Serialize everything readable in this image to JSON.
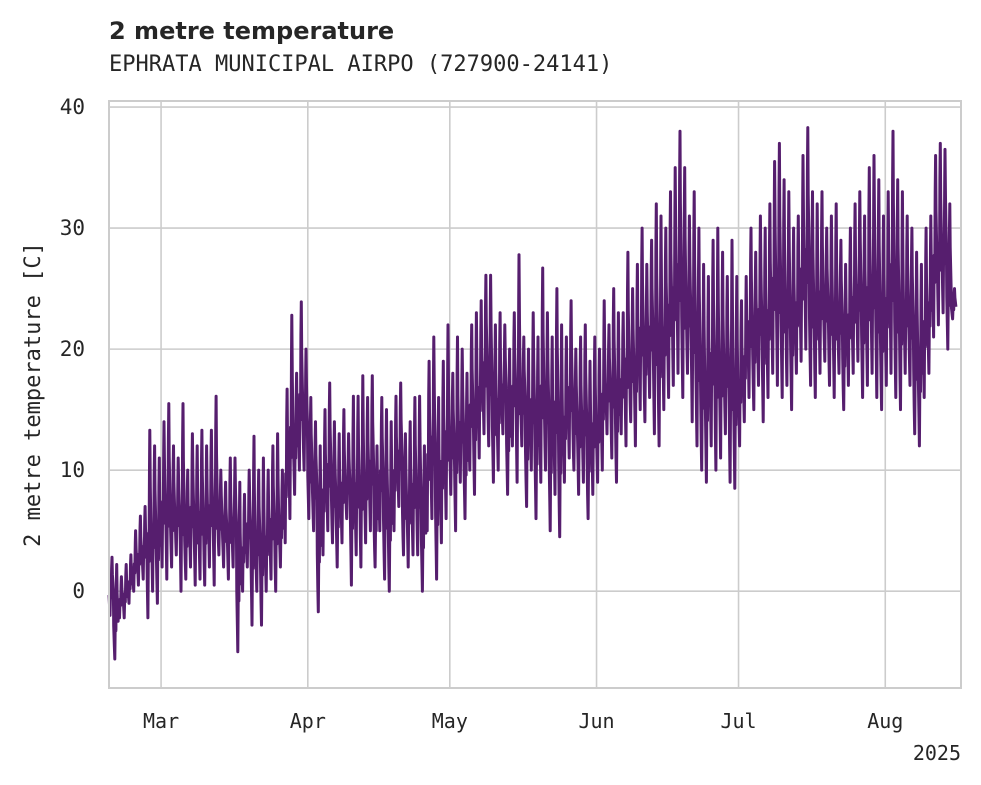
{
  "title": "2 metre temperature",
  "subtitle": "EPHRATA MUNICIPAL AIRPO (727900-24141)",
  "chart_data": {
    "type": "line",
    "ylabel": "2 metre temperature [C]",
    "xlabel": "",
    "x_ticks": [
      {
        "date": "2025-03-01",
        "label": "Mar"
      },
      {
        "date": "2025-04-01",
        "label": "Apr"
      },
      {
        "date": "2025-05-01",
        "label": "May"
      },
      {
        "date": "2025-06-01",
        "label": "Jun"
      },
      {
        "date": "2025-07-01",
        "label": "Jul"
      },
      {
        "date": "2025-08-01",
        "label": "Aug"
      }
    ],
    "year_label": "2025",
    "xlim": [
      "2025-02-18",
      "2025-08-17"
    ],
    "y_ticks": [
      0,
      10,
      20,
      30,
      40
    ],
    "ylim": [
      -8,
      40.5
    ],
    "grid": true,
    "series": [
      {
        "color": "#561e6e",
        "daily_min_max": [
          [
            "2025-02-18",
            -2.0,
            2.8
          ],
          [
            "2025-02-19",
            -5.6,
            2.2
          ],
          [
            "2025-02-20",
            -2.2,
            1.2
          ],
          [
            "2025-02-21",
            -2.2,
            2.2
          ],
          [
            "2025-02-22",
            -1.0,
            3.0
          ],
          [
            "2025-02-23",
            0.0,
            5.0
          ],
          [
            "2025-02-24",
            0.5,
            6.2
          ],
          [
            "2025-02-25",
            1.0,
            7.0
          ],
          [
            "2025-02-26",
            -2.2,
            13.3
          ],
          [
            "2025-02-27",
            0.0,
            12.0
          ],
          [
            "2025-02-28",
            -1.0,
            11.0
          ],
          [
            "2025-03-01",
            2.0,
            14.0
          ],
          [
            "2025-03-02",
            1.0,
            15.5
          ],
          [
            "2025-03-03",
            2.0,
            12.0
          ],
          [
            "2025-03-04",
            3.0,
            11.0
          ],
          [
            "2025-03-05",
            0.0,
            15.5
          ],
          [
            "2025-03-06",
            1.0,
            10.0
          ],
          [
            "2025-03-07",
            2.0,
            13.0
          ],
          [
            "2025-03-08",
            0.5,
            12.0
          ],
          [
            "2025-03-09",
            1.0,
            13.3
          ],
          [
            "2025-03-10",
            0.5,
            12.0
          ],
          [
            "2025-03-11",
            2.0,
            13.3
          ],
          [
            "2025-03-12",
            0.5,
            16.1
          ],
          [
            "2025-03-13",
            3.0,
            10.0
          ],
          [
            "2025-03-14",
            2.0,
            9.0
          ],
          [
            "2025-03-15",
            1.0,
            11.0
          ],
          [
            "2025-03-16",
            2.0,
            11.0
          ],
          [
            "2025-03-17",
            -5.0,
            9.0
          ],
          [
            "2025-03-18",
            0.0,
            8.0
          ],
          [
            "2025-03-19",
            2.0,
            10.0
          ],
          [
            "2025-03-20",
            -2.8,
            12.8
          ],
          [
            "2025-03-21",
            0.0,
            10.0
          ],
          [
            "2025-03-22",
            -2.8,
            11.0
          ],
          [
            "2025-03-23",
            0.0,
            10.0
          ],
          [
            "2025-03-24",
            1.0,
            12.0
          ],
          [
            "2025-03-25",
            0.0,
            13.0
          ],
          [
            "2025-03-26",
            2.0,
            10.0
          ],
          [
            "2025-03-27",
            4.0,
            16.7
          ],
          [
            "2025-03-28",
            6.0,
            22.8
          ],
          [
            "2025-03-29",
            8.0,
            18.0
          ],
          [
            "2025-03-30",
            10.0,
            23.9
          ],
          [
            "2025-03-31",
            10.0,
            20.0
          ],
          [
            "2025-04-01",
            6.0,
            16.0
          ],
          [
            "2025-04-02",
            5.0,
            14.0
          ],
          [
            "2025-04-03",
            -1.7,
            12.0
          ],
          [
            "2025-04-04",
            3.0,
            15.0
          ],
          [
            "2025-04-05",
            5.0,
            17.2
          ],
          [
            "2025-04-06",
            4.0,
            14.0
          ],
          [
            "2025-04-07",
            2.0,
            13.0
          ],
          [
            "2025-04-08",
            4.0,
            15.0
          ],
          [
            "2025-04-09",
            6.0,
            13.0
          ],
          [
            "2025-04-10",
            0.5,
            16.1
          ],
          [
            "2025-04-11",
            3.0,
            16.1
          ],
          [
            "2025-04-12",
            2.0,
            17.8
          ],
          [
            "2025-04-13",
            4.0,
            16.0
          ],
          [
            "2025-04-14",
            5.0,
            17.8
          ],
          [
            "2025-04-15",
            2.0,
            12.0
          ],
          [
            "2025-04-16",
            5.0,
            16.0
          ],
          [
            "2025-04-17",
            1.0,
            15.0
          ],
          [
            "2025-04-18",
            0.0,
            14.0
          ],
          [
            "2025-04-19",
            5.0,
            16.1
          ],
          [
            "2025-04-20",
            7.0,
            17.2
          ],
          [
            "2025-04-21",
            3.0,
            13.0
          ],
          [
            "2025-04-22",
            2.0,
            14.0
          ],
          [
            "2025-04-23",
            3.0,
            16.0
          ],
          [
            "2025-04-24",
            3.0,
            16.1
          ],
          [
            "2025-04-25",
            0.0,
            12.0
          ],
          [
            "2025-04-26",
            5.0,
            19.0
          ],
          [
            "2025-04-27",
            6.0,
            21.0
          ],
          [
            "2025-04-28",
            1.0,
            16.0
          ],
          [
            "2025-04-29",
            4.0,
            19.0
          ],
          [
            "2025-04-30",
            6.0,
            22.0
          ],
          [
            "2025-05-01",
            8.0,
            18.0
          ],
          [
            "2025-05-02",
            5.0,
            21.0
          ],
          [
            "2025-05-03",
            9.0,
            20.0
          ],
          [
            "2025-05-04",
            6.0,
            18.0
          ],
          [
            "2025-05-05",
            10.0,
            22.0
          ],
          [
            "2025-05-06",
            8.0,
            23.0
          ],
          [
            "2025-05-07",
            11.0,
            24.0
          ],
          [
            "2025-05-08",
            13.0,
            26.1
          ],
          [
            "2025-05-09",
            12.0,
            26.1
          ],
          [
            "2025-05-10",
            9.0,
            22.0
          ],
          [
            "2025-05-11",
            10.0,
            23.0
          ],
          [
            "2025-05-12",
            13.0,
            22.0
          ],
          [
            "2025-05-13",
            8.0,
            20.0
          ],
          [
            "2025-05-14",
            12.0,
            23.0
          ],
          [
            "2025-05-15",
            9.0,
            27.8
          ],
          [
            "2025-05-16",
            12.0,
            21.0
          ],
          [
            "2025-05-17",
            7.0,
            20.0
          ],
          [
            "2025-05-18",
            10.0,
            23.0
          ],
          [
            "2025-05-19",
            6.0,
            21.0
          ],
          [
            "2025-05-20",
            9.0,
            26.7
          ],
          [
            "2025-05-21",
            10.0,
            23.0
          ],
          [
            "2025-05-22",
            5.0,
            21.0
          ],
          [
            "2025-05-23",
            8.0,
            25.0
          ],
          [
            "2025-05-24",
            4.5,
            22.0
          ],
          [
            "2025-05-25",
            9.0,
            21.0
          ],
          [
            "2025-05-26",
            11.0,
            24.0
          ],
          [
            "2025-05-27",
            10.0,
            20.0
          ],
          [
            "2025-05-28",
            8.0,
            21.0
          ],
          [
            "2025-05-29",
            9.0,
            22.0
          ],
          [
            "2025-05-30",
            6.0,
            19.0
          ],
          [
            "2025-05-31",
            8.0,
            21.0
          ],
          [
            "2025-06-01",
            9.0,
            20.0
          ],
          [
            "2025-06-02",
            10.0,
            24.0
          ],
          [
            "2025-06-03",
            13.0,
            22.0
          ],
          [
            "2025-06-04",
            11.0,
            25.0
          ],
          [
            "2025-06-05",
            9.0,
            23.0
          ],
          [
            "2025-06-06",
            13.0,
            23.0
          ],
          [
            "2025-06-07",
            12.0,
            28.0
          ],
          [
            "2025-06-08",
            14.0,
            25.0
          ],
          [
            "2025-06-09",
            12.0,
            27.0
          ],
          [
            "2025-06-10",
            15.0,
            30.0
          ],
          [
            "2025-06-11",
            14.0,
            27.0
          ],
          [
            "2025-06-12",
            16.0,
            29.0
          ],
          [
            "2025-06-13",
            13.0,
            32.0
          ],
          [
            "2025-06-14",
            12.0,
            31.0
          ],
          [
            "2025-06-15",
            15.0,
            30.0
          ],
          [
            "2025-06-16",
            16.0,
            33.0
          ],
          [
            "2025-06-17",
            17.0,
            35.0
          ],
          [
            "2025-06-18",
            18.0,
            38.0
          ],
          [
            "2025-06-19",
            16.0,
            35.0
          ],
          [
            "2025-06-20",
            18.0,
            31.0
          ],
          [
            "2025-06-21",
            14.0,
            33.0
          ],
          [
            "2025-06-22",
            12.0,
            30.0
          ],
          [
            "2025-06-23",
            10.0,
            27.0
          ],
          [
            "2025-06-24",
            9.0,
            26.0
          ],
          [
            "2025-06-25",
            12.0,
            29.0
          ],
          [
            "2025-06-26",
            10.0,
            30.0
          ],
          [
            "2025-06-27",
            11.0,
            28.0
          ],
          [
            "2025-06-28",
            13.0,
            26.0
          ],
          [
            "2025-06-29",
            9.0,
            29.0
          ],
          [
            "2025-06-30",
            8.5,
            26.0
          ],
          [
            "2025-07-01",
            12.0,
            24.0
          ],
          [
            "2025-07-02",
            14.0,
            26.0
          ],
          [
            "2025-07-03",
            16.0,
            30.0
          ],
          [
            "2025-07-04",
            15.0,
            28.0
          ],
          [
            "2025-07-05",
            17.0,
            31.0
          ],
          [
            "2025-07-06",
            14.0,
            30.0
          ],
          [
            "2025-07-07",
            16.0,
            32.0
          ],
          [
            "2025-07-08",
            18.0,
            35.5
          ],
          [
            "2025-07-09",
            17.0,
            37.0
          ],
          [
            "2025-07-10",
            16.0,
            34.0
          ],
          [
            "2025-07-11",
            17.0,
            33.0
          ],
          [
            "2025-07-12",
            15.0,
            30.0
          ],
          [
            "2025-07-13",
            18.0,
            31.0
          ],
          [
            "2025-07-14",
            19.0,
            36.0
          ],
          [
            "2025-07-15",
            20.0,
            38.3
          ],
          [
            "2025-07-16",
            17.0,
            33.0
          ],
          [
            "2025-07-17",
            16.0,
            32.0
          ],
          [
            "2025-07-18",
            18.0,
            33.0
          ],
          [
            "2025-07-19",
            19.0,
            30.0
          ],
          [
            "2025-07-20",
            17.0,
            31.0
          ],
          [
            "2025-07-21",
            16.0,
            32.0
          ],
          [
            "2025-07-22",
            18.0,
            29.0
          ],
          [
            "2025-07-23",
            15.0,
            27.0
          ],
          [
            "2025-07-24",
            17.0,
            30.0
          ],
          [
            "2025-07-25",
            18.0,
            32.0
          ],
          [
            "2025-07-26",
            19.0,
            33.0
          ],
          [
            "2025-07-27",
            16.0,
            31.0
          ],
          [
            "2025-07-28",
            17.0,
            35.0
          ],
          [
            "2025-07-29",
            18.0,
            36.0
          ],
          [
            "2025-07-30",
            16.0,
            34.0
          ],
          [
            "2025-07-31",
            15.0,
            31.0
          ],
          [
            "2025-08-01",
            17.0,
            33.0
          ],
          [
            "2025-08-02",
            18.0,
            38.0
          ],
          [
            "2025-08-03",
            16.0,
            34.0
          ],
          [
            "2025-08-04",
            15.0,
            33.0
          ],
          [
            "2025-08-05",
            18.0,
            31.0
          ],
          [
            "2025-08-06",
            17.0,
            30.0
          ],
          [
            "2025-08-07",
            13.0,
            28.0
          ],
          [
            "2025-08-08",
            12.0,
            27.0
          ],
          [
            "2025-08-09",
            16.0,
            30.0
          ],
          [
            "2025-08-10",
            18.0,
            31.0
          ],
          [
            "2025-08-11",
            21.0,
            36.0
          ],
          [
            "2025-08-12",
            22.0,
            37.0
          ],
          [
            "2025-08-13",
            23.0,
            36.5
          ],
          [
            "2025-08-14",
            20.0,
            32.0
          ],
          [
            "2025-08-15",
            22.5,
            25.0
          ]
        ]
      }
    ]
  }
}
